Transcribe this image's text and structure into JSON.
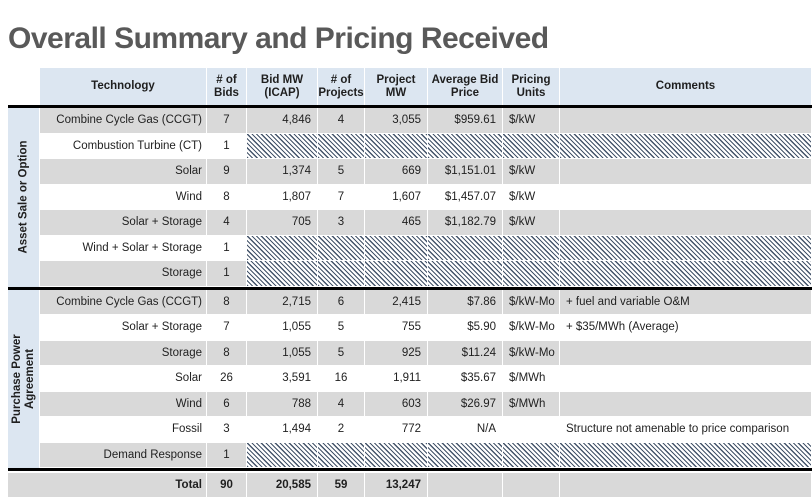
{
  "title": "Overall Summary and Pricing Received",
  "header": {
    "technology": "Technology",
    "bids": "# of Bids",
    "bid_mw": "Bid MW (ICAP)",
    "projects": "# of Projects",
    "project_mw": "Project MW",
    "price": "Average Bid Price",
    "units": "Pricing Units",
    "comments": "Comments"
  },
  "sections": [
    {
      "label": "Asset Sale or Option",
      "rows": [
        {
          "tech": "Combine Cycle Gas (CCGT)",
          "bids": "7",
          "bid_mw": "4,846",
          "projects": "4",
          "project_mw": "3,055",
          "price": "$959.61",
          "units": "$/kW",
          "comment": ""
        },
        {
          "tech": "Combustion Turbine (CT)",
          "bids": "1",
          "hatched": true
        },
        {
          "tech": "Solar",
          "bids": "9",
          "bid_mw": "1,374",
          "projects": "5",
          "project_mw": "669",
          "price": "$1,151.01",
          "units": "$/kW",
          "comment": ""
        },
        {
          "tech": "Wind",
          "bids": "8",
          "bid_mw": "1,807",
          "projects": "7",
          "project_mw": "1,607",
          "price": "$1,457.07",
          "units": "$/kW",
          "comment": ""
        },
        {
          "tech": "Solar + Storage",
          "bids": "4",
          "bid_mw": "705",
          "projects": "3",
          "project_mw": "465",
          "price": "$1,182.79",
          "units": "$/kW",
          "comment": ""
        },
        {
          "tech": "Wind + Solar + Storage",
          "bids": "1",
          "hatched": true
        },
        {
          "tech": "Storage",
          "bids": "1",
          "hatched": true
        }
      ]
    },
    {
      "label": "Purchase Power Agreement",
      "rows": [
        {
          "tech": "Combine Cycle Gas (CCGT)",
          "bids": "8",
          "bid_mw": "2,715",
          "projects": "6",
          "project_mw": "2,415",
          "price": "$7.86",
          "units": "$/kW-Mo",
          "comment": "+ fuel and variable O&M"
        },
        {
          "tech": "Solar + Storage",
          "bids": "7",
          "bid_mw": "1,055",
          "projects": "5",
          "project_mw": "755",
          "price": "$5.90",
          "units": "$/kW-Mo",
          "comment": "+ $35/MWh (Average)"
        },
        {
          "tech": "Storage",
          "bids": "8",
          "bid_mw": "1,055",
          "projects": "5",
          "project_mw": "925",
          "price": "$11.24",
          "units": "$/kW-Mo",
          "comment": ""
        },
        {
          "tech": "Solar",
          "bids": "26",
          "bid_mw": "3,591",
          "projects": "16",
          "project_mw": "1,911",
          "price": "$35.67",
          "units": "$/MWh",
          "comment": ""
        },
        {
          "tech": "Wind",
          "bids": "6",
          "bid_mw": "788",
          "projects": "4",
          "project_mw": "603",
          "price": "$26.97",
          "units": "$/MWh",
          "comment": ""
        },
        {
          "tech": "Fossil",
          "bids": "3",
          "bid_mw": "1,494",
          "projects": "2",
          "project_mw": "772",
          "price": "N/A",
          "units": "",
          "comment": "Structure not amenable to price comparison"
        },
        {
          "tech": "Demand Response",
          "bids": "1",
          "hatched": true
        }
      ]
    }
  ],
  "total": {
    "label": "Total",
    "bids": "90",
    "bid_mw": "20,585",
    "projects": "59",
    "project_mw": "13,247"
  },
  "colors": {
    "header_bg": "#dce6f1",
    "sidebar_bg": "#dce6f1",
    "row_stripe": "#d9d9d9",
    "hatch_stripe": "#44546a",
    "divider": "#000000",
    "title_text": "#595959"
  }
}
